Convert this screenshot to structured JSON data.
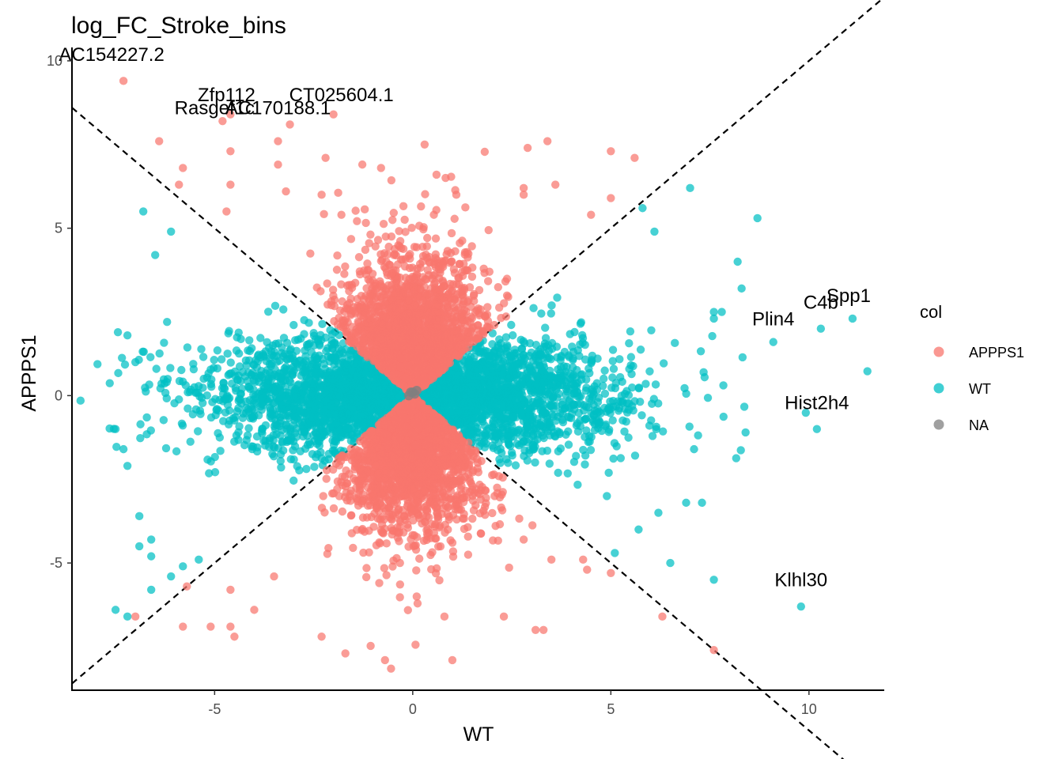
{
  "chart_data": {
    "type": "scatter",
    "title": "log_FC_Stroke_bins",
    "xlabel": "WT",
    "ylabel": "APPPS1",
    "xlim": [
      -8.6,
      11.9
    ],
    "ylim": [
      -8.8,
      10.4
    ],
    "x_ticks": [
      -5,
      0,
      5,
      10
    ],
    "y_ticks": [
      -5,
      0,
      5,
      10
    ],
    "x_tick_labels": [
      "-5",
      "0",
      "5",
      "10"
    ],
    "y_tick_labels": [
      "-5",
      "0",
      "5",
      "10"
    ],
    "grid": false,
    "reference_lines": [
      {
        "slope": 1,
        "intercept": 0,
        "style": "dashed"
      },
      {
        "slope": -1,
        "intercept": 0,
        "style": "dashed"
      }
    ],
    "legend": {
      "title": "col",
      "position": "right",
      "entries": [
        {
          "label": "APPPS1",
          "color": "#F8766D"
        },
        {
          "label": "WT",
          "color": "#00BFC4"
        },
        {
          "label": "NA",
          "color": "#808080"
        }
      ]
    },
    "series": [
      {
        "name": "APPPS1",
        "color": "#F8766D",
        "points": [
          [
            -7.3,
            9.4
          ],
          [
            -4.6,
            8.4
          ],
          [
            -2.0,
            8.4
          ],
          [
            -3.1,
            8.1
          ],
          [
            -4.8,
            8.2
          ],
          [
            -6.4,
            7.6
          ],
          [
            -4.6,
            7.3
          ],
          [
            -3.4,
            6.9
          ],
          [
            -5.8,
            6.8
          ],
          [
            -5.9,
            6.3
          ],
          [
            -4.6,
            6.3
          ],
          [
            -3.2,
            6.1
          ],
          [
            -2.3,
            6.0
          ],
          [
            -2.2,
            7.1
          ],
          [
            -3.4,
            7.6
          ],
          [
            0.3,
            7.5
          ],
          [
            2.9,
            7.4
          ],
          [
            3.4,
            7.6
          ],
          [
            5.0,
            7.3
          ],
          [
            5.6,
            7.1
          ],
          [
            -0.8,
            6.8
          ],
          [
            0.6,
            6.6
          ],
          [
            2.8,
            6.2
          ],
          [
            3.6,
            6.3
          ],
          [
            5.0,
            5.9
          ],
          [
            1.1,
            6.0
          ],
          [
            2.8,
            6.0
          ],
          [
            -1.8,
            5.4
          ],
          [
            -4.7,
            5.5
          ],
          [
            4.5,
            5.4
          ],
          [
            -7.0,
            -6.6
          ],
          [
            -5.8,
            -6.9
          ],
          [
            -5.1,
            -6.9
          ],
          [
            -4.6,
            -6.9
          ],
          [
            -4.5,
            -7.2
          ],
          [
            -2.3,
            -7.2
          ],
          [
            -1.7,
            -7.7
          ],
          [
            -0.7,
            -7.9
          ],
          [
            1.0,
            -7.9
          ],
          [
            3.1,
            -7.0
          ],
          [
            3.3,
            -7.0
          ],
          [
            2.3,
            -6.6
          ],
          [
            6.3,
            -6.6
          ],
          [
            7.6,
            -7.6
          ],
          [
            5.0,
            -5.3
          ],
          [
            4.4,
            -5.2
          ],
          [
            -5.7,
            -5.7
          ],
          [
            -4.6,
            -5.8
          ],
          [
            -3.5,
            -5.4
          ],
          [
            0.8,
            -6.6
          ],
          [
            -4.0,
            -6.4
          ],
          [
            0.1,
            -6.0
          ],
          [
            2.8,
            -4.3
          ],
          [
            4.3,
            -4.9
          ],
          [
            3.5,
            -4.9
          ]
        ],
        "cloud": {
          "count": 4200,
          "x_spread": 0.95,
          "y_spread_inner": 1.7,
          "y_spread_outer": 2.2
        }
      },
      {
        "name": "WT",
        "color": "#00BFC4",
        "points": [
          [
            -7.5,
            -6.4
          ],
          [
            -7.2,
            -6.6
          ],
          [
            -7.5,
            -1.0
          ],
          [
            -7.3,
            -1.6
          ],
          [
            -7.2,
            -2.1
          ],
          [
            -7.2,
            1.8
          ],
          [
            -6.8,
            5.5
          ],
          [
            -6.5,
            4.2
          ],
          [
            -6.1,
            4.9
          ],
          [
            -6.2,
            2.2
          ],
          [
            -7.0,
            1.0
          ],
          [
            -6.9,
            -3.6
          ],
          [
            -6.9,
            -4.5
          ],
          [
            -6.6,
            -4.3
          ],
          [
            -6.6,
            -4.8
          ],
          [
            -6.6,
            -5.8
          ],
          [
            -6.1,
            -5.4
          ],
          [
            -5.8,
            -5.1
          ],
          [
            -5.4,
            -4.9
          ],
          [
            9.1,
            1.6
          ],
          [
            10.3,
            2.0
          ],
          [
            11.1,
            2.3
          ],
          [
            10.2,
            -1.0
          ],
          [
            9.8,
            -6.3
          ],
          [
            8.7,
            5.3
          ],
          [
            8.2,
            4.0
          ],
          [
            8.3,
            3.2
          ],
          [
            7.6,
            2.5
          ],
          [
            7.8,
            2.5
          ],
          [
            7.0,
            6.2
          ],
          [
            5.8,
            5.6
          ],
          [
            6.1,
            4.9
          ],
          [
            7.6,
            -5.5
          ],
          [
            6.5,
            -5.0
          ],
          [
            7.3,
            -3.2
          ],
          [
            6.9,
            -3.2
          ],
          [
            7.1,
            -1.6
          ],
          [
            8.4,
            -1.1
          ],
          [
            6.2,
            -3.5
          ],
          [
            5.7,
            -4.0
          ],
          [
            5.1,
            -4.7
          ],
          [
            4.9,
            -3.0
          ],
          [
            7.6,
            2.3
          ]
        ],
        "cloud": {
          "count": 3200,
          "x_spread_inner": 2.2,
          "x_spread_outer": 3.0,
          "y_spread": 0.9
        }
      },
      {
        "name": "NA",
        "color": "#808080",
        "points": [
          [
            0.0,
            0.1
          ],
          [
            0.05,
            0.05
          ],
          [
            -0.05,
            0.1
          ],
          [
            0.1,
            0.15
          ],
          [
            -0.1,
            0.0
          ]
        ]
      }
    ],
    "annotations": [
      {
        "text": "AC154227.2",
        "x": -7.6,
        "y": 10.0
      },
      {
        "text": "Zfp112",
        "x": -4.7,
        "y": 8.8
      },
      {
        "text": "CT025604.1",
        "x": -1.8,
        "y": 8.8
      },
      {
        "text": "Rasgef1c",
        "x": -5.0,
        "y": 8.4
      },
      {
        "text": "AC170188.1",
        "x": -3.4,
        "y": 8.4
      },
      {
        "text": "Spp1",
        "x": 11.0,
        "y": 2.8
      },
      {
        "text": "C4b",
        "x": 10.3,
        "y": 2.6
      },
      {
        "text": "Plin4",
        "x": 9.1,
        "y": 2.1
      },
      {
        "text": "Hist2h4",
        "x": 10.2,
        "y": -0.4
      },
      {
        "text": "Klhl30",
        "x": 9.8,
        "y": -5.7
      }
    ]
  }
}
